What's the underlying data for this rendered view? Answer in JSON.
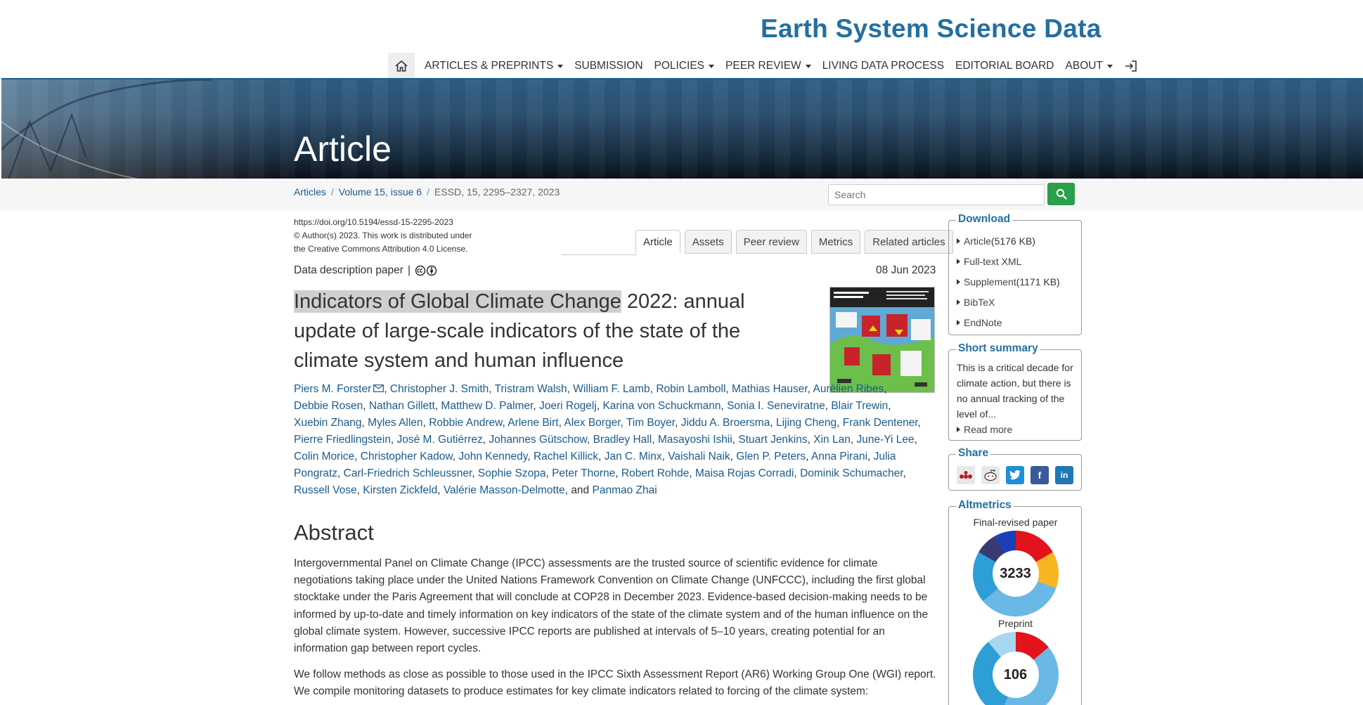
{
  "site": {
    "title": "Earth System Science Data"
  },
  "nav": {
    "items": [
      {
        "label": "ARTICLES & PREPRINTS"
      },
      {
        "label": "SUBMISSION"
      },
      {
        "label": "POLICIES"
      },
      {
        "label": "PEER REVIEW"
      },
      {
        "label": "LIVING DATA PROCESS"
      },
      {
        "label": "EDITORIAL BOARD"
      },
      {
        "label": "ABOUT"
      }
    ]
  },
  "banner": {
    "title": "Article"
  },
  "breadcrumb": {
    "articles": "Articles",
    "volume": "Volume 15, issue 6",
    "citation": "ESSD, 15, 2295–2327, 2023"
  },
  "search": {
    "placeholder": "Search"
  },
  "meta": {
    "doi": "https://doi.org/10.5194/essd-15-2295-2023",
    "license_line1": "© Author(s) 2023. This work is distributed under",
    "license_line2": "the Creative Commons Attribution 4.0 License.",
    "paper_type": "Data description paper",
    "separator": "|",
    "date": "08 Jun 2023"
  },
  "tabs": [
    "Article",
    "Assets",
    "Peer review",
    "Metrics",
    "Related articles"
  ],
  "title": {
    "highlighted": "Indicators of Global Climate Change",
    "rest": " 2022: annual update of large-scale indicators of the state of the climate system and human influence"
  },
  "authors": [
    "Piers M. Forster",
    "Christopher J. Smith",
    "Tristram Walsh",
    "William F. Lamb",
    "Robin Lamboll",
    "Mathias Hauser",
    "Aurélien Ribes",
    "Debbie Rosen",
    "Nathan Gillett",
    "Matthew D. Palmer",
    "Joeri Rogelj",
    "Karina von Schuckmann",
    "Sonia I. Seneviratne",
    "Blair Trewin",
    "Xuebin Zhang",
    "Myles Allen",
    "Robbie Andrew",
    "Arlene Birt",
    "Alex Borger",
    "Tim Boyer",
    "Jiddu A. Broersma",
    "Lijing Cheng",
    "Frank Dentener",
    "Pierre Friedlingstein",
    "José M. Gutiérrez",
    "Johannes Gütschow",
    "Bradley Hall",
    "Masayoshi Ishii",
    "Stuart Jenkins",
    "Xin Lan",
    "June-Yi Lee",
    "Colin Morice",
    "Christopher Kadow",
    "John Kennedy",
    "Rachel Killick",
    "Jan C. Minx",
    "Vaishali Naik",
    "Glen P. Peters",
    "Anna Pirani",
    "Julia Pongratz",
    "Carl-Friedrich Schleussner",
    "Sophie Szopa",
    "Peter Thorne",
    "Robert Rohde",
    "Maisa Rojas Corradi",
    "Dominik Schumacher",
    "Russell Vose",
    "Kirsten Zickfeld",
    "Valérie Masson-Delmotte"
  ],
  "authors_and": "and",
  "authors_last": "Panmao Zhai",
  "abstract": {
    "heading": "Abstract",
    "p1": "Intergovernmental Panel on Climate Change (IPCC) assessments are the trusted source of scientific evidence for climate negotiations taking place under the United Nations Framework Convention on Climate Change (UNFCCC), including the first global stocktake under the Paris Agreement that will conclude at COP28 in December 2023. Evidence-based decision-making needs to be informed by up-to-date and timely information on key indicators of the state of the climate system and of the human influence on the global climate system. However, successive IPCC reports are published at intervals of 5–10 years, creating potential for an information gap between report cycles.",
    "p2": "We follow methods as close as possible to those used in the IPCC Sixth Assessment Report (AR6) Working Group One (WGI) report. We compile monitoring datasets to produce estimates for key climate indicators related to forcing of the climate system:"
  },
  "sidebar": {
    "download": {
      "legend": "Download",
      "items": [
        {
          "label": "Article",
          "extra": " (5176 KB)"
        },
        {
          "label": "Full-text XML",
          "extra": ""
        },
        {
          "label": "Supplement",
          "extra": " (1171 KB)"
        },
        {
          "label": "BibTeX",
          "extra": ""
        },
        {
          "label": "EndNote",
          "extra": ""
        }
      ]
    },
    "summary": {
      "legend": "Short summary",
      "text": "This is a critical decade for climate action, but there is no annual tracking of the level of...",
      "read_more": "Read more"
    },
    "share": {
      "legend": "Share"
    },
    "altmetrics": {
      "legend": "Altmetrics",
      "final_label": "Final-revised paper",
      "final_score": "3233",
      "preprint_label": "Preprint",
      "preprint_score": "106"
    }
  },
  "colors": {
    "brand": "#246fa0",
    "link": "#1b5b8c",
    "search_button": "#2aa04a"
  }
}
